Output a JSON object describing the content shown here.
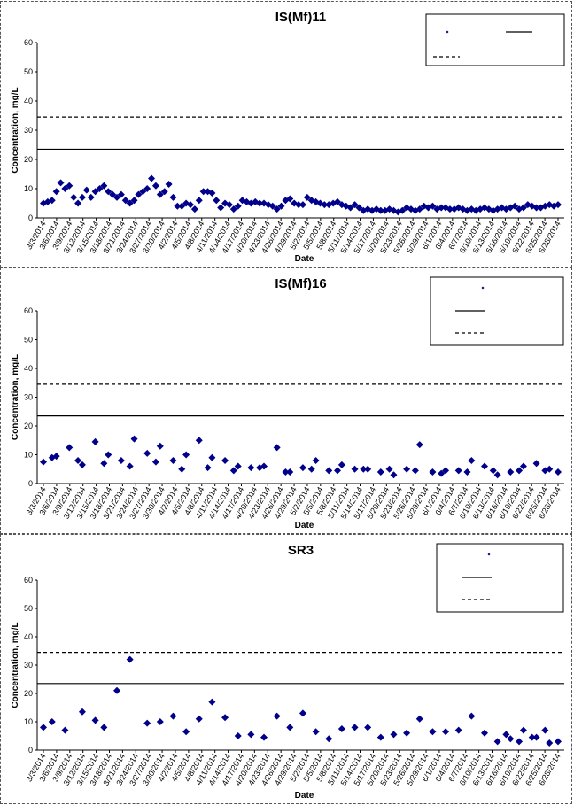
{
  "chart_data": [
    {
      "type": "scatter",
      "title": "IS(Mf)11",
      "xlabel": "Date",
      "ylabel": "Concentration, mg/L",
      "ylim": [
        0,
        60
      ],
      "yticks": [
        "0",
        "10",
        "20",
        "30",
        "40",
        "50",
        "60"
      ],
      "xticks": [
        "3/3/2014",
        "3/6/2014",
        "3/9/2014",
        "3/12/2014",
        "3/15/2014",
        "3/18/2014",
        "3/21/2014",
        "3/24/2014",
        "3/27/2014",
        "3/30/2014",
        "4/2/2014",
        "4/5/2014",
        "4/8/2014",
        "4/11/2014",
        "4/14/2014",
        "4/17/2014",
        "4/20/2014",
        "4/23/2014",
        "4/26/2014",
        "4/29/2014",
        "5/2/2014",
        "5/5/2014",
        "5/8/2014",
        "5/11/2014",
        "5/14/2014",
        "5/17/2014",
        "5/20/2014",
        "5/23/2014",
        "5/26/2014",
        "5/29/2014",
        "6/1/2014",
        "6/4/2014",
        "6/7/2014",
        "6/10/2014",
        "6/13/2014",
        "6/16/2014",
        "6/19/2014",
        "6/22/2014",
        "6/25/2014",
        "6/28/2014"
      ],
      "grid": false,
      "legend_position": "top-right",
      "hlines": [
        {
          "y": 34.5,
          "style": "dashed"
        },
        {
          "y": 23.5,
          "style": "solid"
        }
      ],
      "series": [
        {
          "marker": "diamond",
          "color": "#00008B",
          "x": [
            0,
            1,
            2,
            3,
            4,
            5,
            6,
            7,
            8,
            9,
            10,
            11,
            12,
            13,
            14,
            15,
            16,
            17,
            18,
            19,
            20,
            21,
            22,
            23,
            24,
            25,
            26,
            27,
            28,
            29,
            30,
            31,
            32,
            33,
            34,
            35,
            36,
            37,
            38,
            39,
            40,
            41,
            42,
            43,
            44,
            45,
            46,
            47,
            48,
            49,
            50,
            51,
            52,
            53,
            54,
            55,
            56,
            57,
            58,
            59,
            60,
            61,
            62,
            63,
            64,
            65,
            66,
            67,
            68,
            69,
            70,
            71,
            72,
            73,
            74,
            75,
            76,
            77,
            78,
            79,
            80,
            81,
            82,
            83,
            84,
            85,
            86,
            87,
            88,
            89,
            90,
            91,
            92,
            93,
            94,
            95,
            96,
            97,
            98,
            99,
            100,
            101,
            102,
            103,
            104,
            105,
            106,
            107,
            108,
            109,
            110,
            111,
            112,
            113,
            114,
            115,
            116,
            117,
            118,
            119
          ],
          "y": [
            5.0,
            5.5,
            6.0,
            9.0,
            12.0,
            10.0,
            11.0,
            7.0,
            5.0,
            7.0,
            9.5,
            7.0,
            9.0,
            10.0,
            11.0,
            9.0,
            8.0,
            7.0,
            8.0,
            6.0,
            5.0,
            6.0,
            8.0,
            9.0,
            10.0,
            13.5,
            11.0,
            8.0,
            9.0,
            11.5,
            7.0,
            4.0,
            4.0,
            5.0,
            4.5,
            3.0,
            6.0,
            9.0,
            9.0,
            8.5,
            6.0,
            3.5,
            5.0,
            4.5,
            3.0,
            4.0,
            6.0,
            5.5,
            5.0,
            5.5,
            5.0,
            5.0,
            4.5,
            4.0,
            3.0,
            4.0,
            6.0,
            6.5,
            5.0,
            4.5,
            4.5,
            7.0,
            6.0,
            5.5,
            5.0,
            4.5,
            4.5,
            5.0,
            5.5,
            4.5,
            4.0,
            3.5,
            4.5,
            3.5,
            2.5,
            3.0,
            2.5,
            3.0,
            2.5,
            2.5,
            3.0,
            2.5,
            2.0,
            2.5,
            3.5,
            3.0,
            2.5,
            3.0,
            4.0,
            3.5,
            4.0,
            3.0,
            3.5,
            3.5,
            3.0,
            3.0,
            3.5,
            3.0,
            2.5,
            3.0,
            2.5,
            3.0,
            3.5,
            3.0,
            2.5,
            3.0,
            3.5,
            3.0,
            3.5,
            4.0,
            3.0,
            3.5,
            4.5,
            4.0,
            3.5,
            3.5,
            4.0,
            4.5,
            4.0,
            4.5
          ]
        }
      ]
    },
    {
      "type": "scatter",
      "title": "IS(Mf)16",
      "xlabel": "Date",
      "ylabel": "Concentration, mg/L",
      "ylim": [
        0,
        60
      ],
      "yticks": [
        "0",
        "10",
        "20",
        "30",
        "40",
        "50",
        "60"
      ],
      "xticks": [
        "3/3/2014",
        "3/6/2014",
        "3/9/2014",
        "3/12/2014",
        "3/15/2014",
        "3/18/2014",
        "3/21/2014",
        "3/24/2014",
        "3/27/2014",
        "3/30/2014",
        "4/2/2014",
        "4/5/2014",
        "4/8/2014",
        "4/11/2014",
        "4/14/2014",
        "4/17/2014",
        "4/20/2014",
        "4/23/2014",
        "4/26/2014",
        "4/29/2014",
        "5/2/2014",
        "5/5/2014",
        "5/8/2014",
        "5/11/2014",
        "5/14/2014",
        "5/17/2014",
        "5/20/2014",
        "5/23/2014",
        "5/26/2014",
        "5/29/2014",
        "6/1/2014",
        "6/4/2014",
        "6/7/2014",
        "6/10/2014",
        "6/13/2014",
        "6/16/2014",
        "6/19/2014",
        "6/22/2014",
        "6/25/2014",
        "6/28/2014"
      ],
      "grid": false,
      "legend_position": "top-right",
      "hlines": [
        {
          "y": 34.5,
          "style": "dashed"
        },
        {
          "y": 23.5,
          "style": "solid"
        }
      ],
      "series": [
        {
          "marker": "diamond",
          "color": "#00008B",
          "x": [
            0,
            3,
            6,
            9,
            12,
            15,
            18,
            21,
            24,
            27,
            30,
            33,
            36,
            39,
            42,
            45,
            48,
            51,
            54,
            57,
            60,
            63,
            66,
            69,
            72,
            75,
            78,
            81,
            84,
            87,
            90,
            93,
            96,
            99,
            102,
            105,
            108,
            111,
            114,
            117,
            119,
            2,
            8,
            14,
            20,
            26,
            32,
            38,
            44,
            50,
            56,
            62,
            68,
            74,
            80,
            86,
            92,
            98,
            104,
            110,
            116
          ],
          "y": [
            7.5,
            9.5,
            12.5,
            6.5,
            14.5,
            10.0,
            8.0,
            15.5,
            10.5,
            13.0,
            8.0,
            10.0,
            15.0,
            9.0,
            8.0,
            6.0,
            5.5,
            6.0,
            12.5,
            4.0,
            5.5,
            8.0,
            4.5,
            6.5,
            5.0,
            5.0,
            4.0,
            3.0,
            5.0,
            13.5,
            4.0,
            4.5,
            4.5,
            8.0,
            6.0,
            3.0,
            4.0,
            6.0,
            7.0,
            5.0,
            4.0,
            9.0,
            8.0,
            7.0,
            6.0,
            7.5,
            5.0,
            5.5,
            4.5,
            5.5,
            4.0,
            5.0,
            4.5,
            5.0,
            5.0,
            4.5,
            3.5,
            4.0,
            4.5,
            4.5,
            4.5
          ]
        }
      ]
    },
    {
      "type": "scatter",
      "title": "SR3",
      "xlabel": "Date",
      "ylabel": "Concentration, mg/L",
      "ylim": [
        0,
        60
      ],
      "yticks": [
        "0",
        "10",
        "20",
        "30",
        "40",
        "50",
        "60"
      ],
      "xticks": [
        "3/3/2014",
        "3/6/2014",
        "3/9/2014",
        "3/12/2014",
        "3/15/2014",
        "3/18/2014",
        "3/21/2014",
        "3/24/2014",
        "3/27/2014",
        "3/30/2014",
        "4/2/2014",
        "4/5/2014",
        "4/8/2014",
        "4/11/2014",
        "4/14/2014",
        "4/17/2014",
        "4/20/2014",
        "4/23/2014",
        "4/26/2014",
        "4/29/2014",
        "5/2/2014",
        "5/5/2014",
        "5/8/2014",
        "5/11/2014",
        "5/14/2014",
        "5/17/2014",
        "5/20/2014",
        "5/23/2014",
        "5/26/2014",
        "5/29/2014",
        "6/1/2014",
        "6/4/2014",
        "6/7/2014",
        "6/10/2014",
        "6/13/2014",
        "6/16/2014",
        "6/19/2014",
        "6/22/2014",
        "6/25/2014",
        "6/28/2014"
      ],
      "grid": false,
      "legend_position": "top-right",
      "hlines": [
        {
          "y": 34.5,
          "style": "dashed"
        },
        {
          "y": 23.5,
          "style": "solid"
        }
      ],
      "series": [
        {
          "marker": "diamond",
          "color": "#00008B",
          "x": [
            0,
            2,
            5,
            9,
            12,
            14,
            17,
            20,
            24,
            27,
            30,
            33,
            36,
            39,
            42,
            45,
            48,
            51,
            54,
            57,
            60,
            63,
            66,
            69,
            72,
            75,
            78,
            81,
            84,
            87,
            90,
            93,
            96,
            99,
            102,
            105,
            108,
            111,
            114,
            117,
            119,
            107,
            110,
            113,
            116
          ],
          "y": [
            8.0,
            10.0,
            7.0,
            13.5,
            10.5,
            8.0,
            21.0,
            32.0,
            9.5,
            10.0,
            12.0,
            6.5,
            11.0,
            17.0,
            11.5,
            5.0,
            5.5,
            4.5,
            12.0,
            8.0,
            13.0,
            6.5,
            4.0,
            7.5,
            8.0,
            8.0,
            4.5,
            5.5,
            6.0,
            11.0,
            6.5,
            6.5,
            7.0,
            12.0,
            6.0,
            3.0,
            4.0,
            7.0,
            4.5,
            2.5,
            3.0,
            5.5,
            3.0,
            4.5,
            7.0
          ]
        }
      ]
    }
  ]
}
